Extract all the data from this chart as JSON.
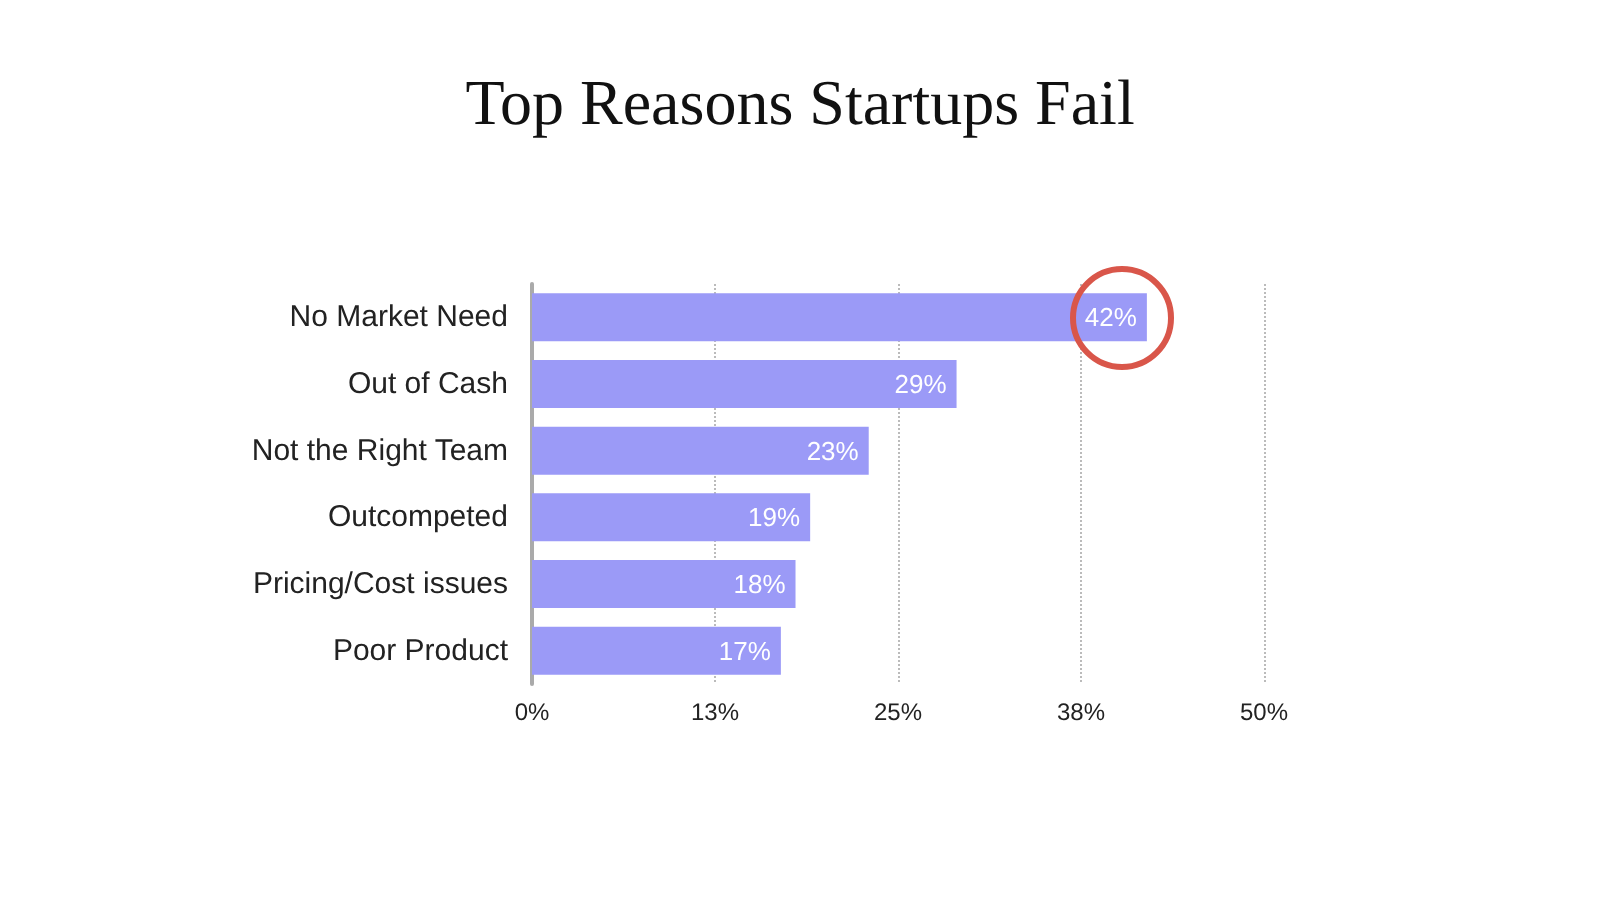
{
  "chart_data": {
    "type": "bar",
    "orientation": "horizontal",
    "title": "Top Reasons Startups Fail",
    "categories": [
      "No Market Need",
      "Out of Cash",
      "Not the Right Team",
      "Outcompeted",
      "Pricing/Cost issues",
      "Poor Product"
    ],
    "values": [
      42,
      29,
      23,
      19,
      18,
      17
    ],
    "color": "#9b9af7",
    "value_labels": [
      "42%",
      "29%",
      "23%",
      "19%",
      "18%",
      "17%"
    ],
    "xlim": [
      0,
      50
    ],
    "xticks": [
      "0%",
      {
        "value": 12.5,
        "label": "13%"
      },
      {
        "value": 25,
        "label": "25%"
      },
      {
        "value": 37.5,
        "label": "38%"
      },
      {
        "value": 50,
        "label": "50%"
      }
    ],
    "grid": "x"
  }
}
